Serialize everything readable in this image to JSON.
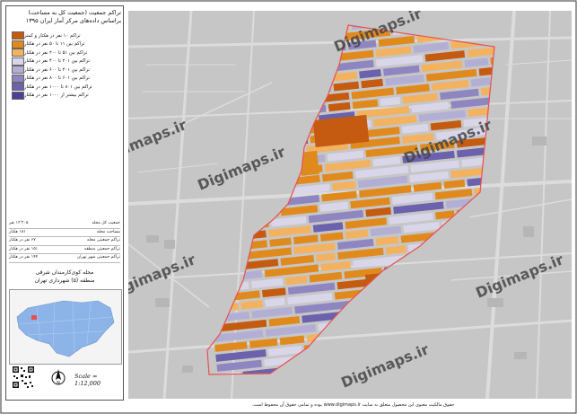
{
  "panel": {
    "title": "تراکم جمعیت (جمعیت کل به مساحت)",
    "subtitle": "براساس داده‌های مرکز آمار ایران ۱۳۹۵"
  },
  "legend": [
    {
      "label": "تراکم ۱۰ نفر در هکتار و کمتر",
      "color": "#c55a11"
    },
    {
      "label": "تراکم بین ۱۱ تا ۵۰ نفر در هکتار",
      "color": "#e08a1e"
    },
    {
      "label": "تراکم بین ۵۱ تا ۲۰۰ نفر در هکتار",
      "color": "#f3b25f"
    },
    {
      "label": "تراکم بین ۲۰۱ تا ۴۰۰ نفر در هکتار",
      "color": "#d9d6ea"
    },
    {
      "label": "تراکم بین ۴۰۱ تا ۶۰۰ نفر در هکتار",
      "color": "#b3aed4"
    },
    {
      "label": "تراکم بین ۶۰۱ تا ۸۰۰ نفر در هکتار",
      "color": "#8f86c1"
    },
    {
      "label": "تراکم بین ۸۰۱ تا ۱۰۰۰ نفر در هکتار",
      "color": "#6b61ad"
    },
    {
      "label": "تراکم بیشتر از ۱۰۰۰ نفر در هکتار",
      "color": "#4c3f96"
    }
  ],
  "stats": [
    {
      "label": "جمعیت کل محله",
      "value": "۱۲٬۲۰۵ نفر"
    },
    {
      "label": "مساحت محله",
      "value": "۱۸۱ هکتار"
    },
    {
      "label": "تراکم جمعیتی محله",
      "value": "۶۷ نفر در هکتار"
    },
    {
      "label": "تراکم جمعیتی منطقه",
      "value": "۱۵۱ نفر در هکتار"
    },
    {
      "label": "تراکم جمعیتی شهر تهران",
      "value": "۱۴۴ نفر در هکتار"
    }
  ],
  "place": {
    "neighborhood": "محله کوی‌کارمندان شرقی",
    "district": "منطقه (۵) شهرداری تهران"
  },
  "scale": "Scale = 1:12,000",
  "watermark": "Digimaps.ir",
  "credit": "حقوق مالکیت معنوی این محصول متعلق به سایت www.digimaps.ir بوده و تمامی حقوق آن محفوظ است.",
  "colors": {
    "boundary": "#e85050",
    "street": "#9a9a9a",
    "background": "#c6c6c6",
    "inset_region": "#8db4e8"
  }
}
